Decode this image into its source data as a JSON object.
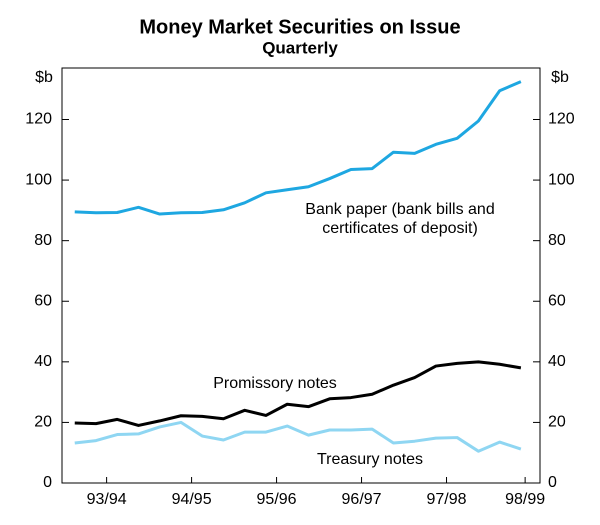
{
  "chart_data": {
    "type": "line",
    "title": "Money Market Securities on Issue",
    "subtitle": "Quarterly",
    "y_label": "$b",
    "y2_label": "$b",
    "x": [
      0,
      1,
      2,
      3,
      4,
      5,
      6,
      7,
      8,
      9,
      10,
      11,
      12,
      13,
      14,
      15,
      16,
      17,
      18,
      19,
      20,
      21
    ],
    "xlim": [
      -0.6,
      21.9
    ],
    "xticks": [
      {
        "value": 1.5,
        "label": "93/94"
      },
      {
        "value": 5.5,
        "label": "94/95"
      },
      {
        "value": 9.5,
        "label": "95/96"
      },
      {
        "value": 13.5,
        "label": "96/97"
      },
      {
        "value": 17.5,
        "label": "97/98"
      },
      {
        "value": 21.2,
        "label": "98/99"
      }
    ],
    "ylim": [
      0,
      137
    ],
    "yticks": [
      0,
      20,
      40,
      60,
      80,
      100,
      120
    ],
    "y2lim": [
      0,
      137
    ],
    "y2ticks": [
      0,
      20,
      40,
      60,
      80,
      100,
      120
    ],
    "series": [
      {
        "name": "Bank paper (bank bills and certificates of deposit)",
        "color": "#1ea7e1",
        "values": [
          89.5,
          89.2,
          89.3,
          91,
          88.8,
          89.2,
          89.3,
          90.2,
          92.5,
          95.8,
          96.8,
          97.8,
          100.5,
          103.5,
          103.8,
          109.2,
          108.8,
          111.8,
          113.8,
          119.5,
          129.5,
          132.5
        ]
      },
      {
        "name": "Promissory notes",
        "color": "#000000",
        "values": [
          19.8,
          19.6,
          21,
          19,
          20.5,
          22.2,
          22,
          21.2,
          24,
          22.3,
          26,
          25.2,
          27.8,
          28.2,
          29.3,
          32.3,
          34.8,
          38.6,
          39.5,
          40,
          39.2,
          38
        ]
      },
      {
        "name": "Treasury notes",
        "color": "#8fd6f2",
        "values": [
          13.2,
          14,
          16,
          16.2,
          18.5,
          20,
          15.5,
          14.2,
          16.8,
          16.8,
          18.8,
          15.8,
          17.5,
          17.5,
          17.8,
          13.2,
          13.8,
          14.8,
          15,
          10.5,
          13.5,
          11.2
        ]
      }
    ]
  }
}
